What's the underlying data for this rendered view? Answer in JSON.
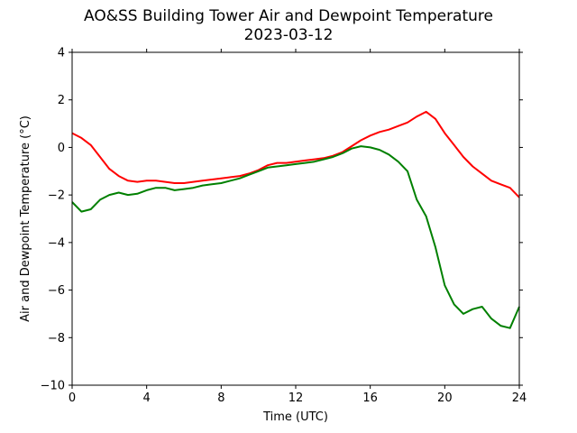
{
  "chart_data": {
    "type": "line",
    "title": "AO&SS Building Tower Air and Dewpoint Temperature",
    "subtitle": "2023-03-12",
    "xlabel": "Time (UTC)",
    "ylabel": "Air and Dewpoint Temperature (°C)",
    "xlim": [
      0,
      24
    ],
    "ylim": [
      -10,
      4
    ],
    "xticks": [
      0,
      4,
      8,
      12,
      16,
      20,
      24
    ],
    "yticks": [
      -10,
      -8,
      -6,
      -4,
      -2,
      0,
      2,
      4
    ],
    "grid": false,
    "series": [
      {
        "color": "#ff0000",
        "x": [
          0,
          0.5,
          1,
          1.5,
          2,
          2.5,
          3,
          3.5,
          4,
          4.5,
          5,
          5.5,
          6,
          6.5,
          7,
          7.5,
          8,
          8.5,
          9,
          9.5,
          10,
          10.5,
          11,
          11.5,
          12,
          12.5,
          13,
          13.5,
          14,
          14.5,
          15,
          15.5,
          16,
          16.5,
          17,
          17.5,
          18,
          18.5,
          19,
          19.5,
          20,
          20.5,
          21,
          21.5,
          22,
          22.5,
          23,
          23.5,
          24
        ],
        "y": [
          0.6,
          0.4,
          0.1,
          -0.4,
          -0.9,
          -1.2,
          -1.4,
          -1.45,
          -1.4,
          -1.4,
          -1.45,
          -1.5,
          -1.5,
          -1.45,
          -1.4,
          -1.35,
          -1.3,
          -1.25,
          -1.2,
          -1.1,
          -0.95,
          -0.75,
          -0.65,
          -0.65,
          -0.6,
          -0.55,
          -0.5,
          -0.45,
          -0.35,
          -0.2,
          0.05,
          0.3,
          0.5,
          0.65,
          0.75,
          0.9,
          1.05,
          1.3,
          1.5,
          1.2,
          0.6,
          0.1,
          -0.4,
          -0.8,
          -1.1,
          -1.4,
          -1.55,
          -1.7,
          -2.1
        ]
      },
      {
        "color": "#008000",
        "x": [
          0,
          0.5,
          1,
          1.5,
          2,
          2.5,
          3,
          3.5,
          4,
          4.5,
          5,
          5.5,
          6,
          6.5,
          7,
          7.5,
          8,
          8.5,
          9,
          9.5,
          10,
          10.5,
          11,
          11.5,
          12,
          12.5,
          13,
          13.5,
          14,
          14.5,
          15,
          15.5,
          16,
          16.5,
          17,
          17.5,
          18,
          18.5,
          19,
          19.5,
          20,
          20.5,
          21,
          21.5,
          22,
          22.5,
          23,
          23.5,
          24
        ],
        "y": [
          -2.3,
          -2.7,
          -2.6,
          -2.2,
          -2.0,
          -1.9,
          -2.0,
          -1.95,
          -1.8,
          -1.7,
          -1.7,
          -1.8,
          -1.75,
          -1.7,
          -1.6,
          -1.55,
          -1.5,
          -1.4,
          -1.3,
          -1.15,
          -1.0,
          -0.85,
          -0.8,
          -0.75,
          -0.7,
          -0.65,
          -0.6,
          -0.5,
          -0.4,
          -0.25,
          -0.05,
          0.05,
          0.0,
          -0.1,
          -0.3,
          -0.6,
          -1.0,
          -2.2,
          -2.9,
          -4.2,
          -5.8,
          -6.6,
          -7.0,
          -6.8,
          -6.7,
          -7.2,
          -7.5,
          -7.6,
          -6.7
        ]
      }
    ]
  }
}
